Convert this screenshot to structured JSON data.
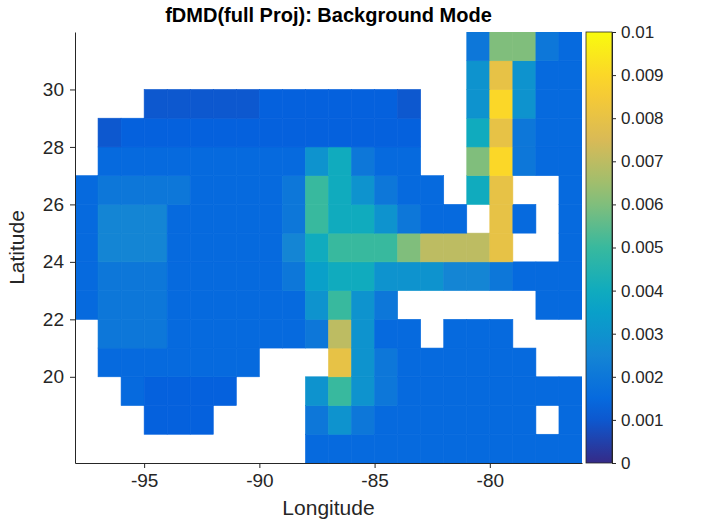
{
  "chart_data": {
    "type": "heatmap",
    "title": "fDMD(full Proj): Background Mode",
    "xlabel": "Longitude",
    "ylabel": "Latitude",
    "xlim": [
      -98,
      -76
    ],
    "ylim": [
      17,
      32
    ],
    "xticks": [
      -95,
      -90,
      -85,
      -80
    ],
    "yticks": [
      20,
      22,
      24,
      26,
      28,
      30
    ],
    "zlim": [
      0,
      0.01
    ],
    "zticks": [
      0,
      0.001,
      0.002,
      0.003,
      0.004,
      0.005,
      0.006,
      0.007,
      0.008,
      0.009,
      0.01
    ],
    "x": [
      -97.5,
      -96.5,
      -95.5,
      -94.5,
      -93.5,
      -92.5,
      -91.5,
      -90.5,
      -89.5,
      -88.5,
      -87.5,
      -86.5,
      -85.5,
      -84.5,
      -83.5,
      -82.5,
      -81.5,
      -80.5,
      -79.5,
      -78.5,
      -77.5,
      -76.5
    ],
    "y": [
      17.5,
      18.5,
      19.5,
      20.5,
      21.5,
      22.5,
      23.5,
      24.5,
      25.5,
      26.5,
      27.5,
      28.5,
      29.5,
      30.5,
      31.5
    ],
    "z": [
      [
        null,
        null,
        null,
        null,
        null,
        null,
        null,
        null,
        null,
        null,
        0.0015,
        0.0015,
        0.0015,
        0.0015,
        0.0015,
        0.0015,
        0.0015,
        0.0015,
        0.0015,
        0.0015,
        0.0015,
        0.0015
      ],
      [
        null,
        null,
        null,
        0.0012,
        0.0012,
        0.0012,
        null,
        null,
        null,
        null,
        0.002,
        0.003,
        0.002,
        0.0015,
        0.0015,
        0.0015,
        0.0015,
        0.0015,
        0.0015,
        0.0015,
        null,
        0.0015
      ],
      [
        null,
        null,
        0.0015,
        0.0012,
        0.0012,
        0.0012,
        0.0012,
        null,
        null,
        null,
        0.003,
        0.005,
        0.003,
        0.002,
        0.0015,
        0.0015,
        0.0015,
        0.0015,
        0.0015,
        0.0015,
        0.0015,
        0.0015
      ],
      [
        null,
        0.0015,
        0.0015,
        0.0015,
        0.0015,
        0.0015,
        0.0015,
        0.0015,
        null,
        null,
        null,
        0.008,
        0.003,
        0.002,
        0.0015,
        0.0015,
        0.0015,
        0.0015,
        0.0015,
        0.0015,
        null,
        null
      ],
      [
        null,
        0.002,
        0.002,
        0.002,
        0.0015,
        0.0015,
        0.0015,
        0.0015,
        0.0015,
        0.0015,
        0.002,
        0.007,
        0.003,
        0.0015,
        0.0015,
        null,
        0.0015,
        0.0015,
        0.0015,
        null,
        null,
        null
      ],
      [
        0.0015,
        0.002,
        0.002,
        0.002,
        0.0015,
        0.0015,
        0.0015,
        0.0015,
        0.0015,
        0.0015,
        0.003,
        0.005,
        0.003,
        0.002,
        null,
        null,
        null,
        null,
        null,
        null,
        0.0015,
        0.0015
      ],
      [
        0.0015,
        0.002,
        0.002,
        0.002,
        0.0015,
        0.0015,
        0.0015,
        0.0015,
        0.0015,
        0.002,
        0.0035,
        0.004,
        0.004,
        0.003,
        0.003,
        0.003,
        0.0025,
        0.0025,
        0.002,
        0.0015,
        0.0015,
        0.0015
      ],
      [
        0.0015,
        0.0025,
        0.0025,
        0.0025,
        0.0015,
        0.0015,
        0.0015,
        0.0015,
        0.0015,
        0.0025,
        0.004,
        0.005,
        0.005,
        0.005,
        0.006,
        0.007,
        0.007,
        0.007,
        0.008,
        null,
        null,
        0.0015
      ],
      [
        0.0015,
        0.0025,
        0.0025,
        0.0025,
        0.0015,
        0.0015,
        0.0015,
        0.0015,
        0.0015,
        0.002,
        0.005,
        0.004,
        0.004,
        0.003,
        0.002,
        0.0015,
        0.0015,
        null,
        0.008,
        0.0015,
        null,
        0.0015
      ],
      [
        0.0015,
        0.002,
        0.002,
        0.002,
        0.002,
        0.0015,
        0.0015,
        0.0015,
        0.0015,
        0.002,
        0.005,
        0.004,
        0.003,
        0.002,
        0.0015,
        0.0015,
        null,
        0.004,
        0.008,
        null,
        null,
        0.0015
      ],
      [
        null,
        0.0015,
        0.0015,
        0.0015,
        0.0015,
        0.0015,
        0.0015,
        0.0015,
        0.0015,
        0.0015,
        0.003,
        0.004,
        0.002,
        0.0015,
        0.0015,
        null,
        null,
        0.006,
        0.009,
        0.002,
        0.0015,
        0.0015
      ],
      [
        null,
        0.001,
        0.0012,
        0.0012,
        0.0012,
        0.0012,
        0.0012,
        0.0012,
        0.0012,
        0.0012,
        0.0012,
        0.0012,
        0.0012,
        0.0012,
        0.0012,
        null,
        null,
        0.004,
        0.008,
        0.002,
        0.0015,
        0.0015
      ],
      [
        null,
        null,
        null,
        0.001,
        0.001,
        0.001,
        0.001,
        0.001,
        0.0012,
        0.0012,
        0.0012,
        0.0012,
        0.0012,
        0.0012,
        0.001,
        null,
        null,
        0.003,
        0.009,
        0.003,
        0.0015,
        0.0015
      ],
      [
        null,
        null,
        null,
        null,
        null,
        null,
        null,
        null,
        null,
        null,
        null,
        null,
        null,
        null,
        null,
        null,
        null,
        0.003,
        0.008,
        0.003,
        0.0015,
        0.0015
      ],
      [
        null,
        null,
        null,
        null,
        null,
        null,
        null,
        null,
        null,
        null,
        null,
        null,
        null,
        null,
        null,
        null,
        null,
        0.002,
        0.006,
        0.006,
        0.002,
        0.0015
      ]
    ]
  }
}
